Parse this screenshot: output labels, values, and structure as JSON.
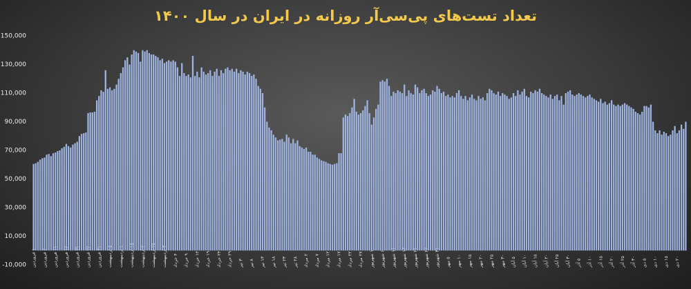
{
  "chart_data": {
    "type": "bar",
    "title": "تعداد تست‌های پی‌سی‌آر روزانه در ایران در سال ۱۴۰۰",
    "color": "#9fb4e0",
    "ylim": [
      -10000,
      150000
    ],
    "yticks": [
      {
        "value": -10000,
        "label": "-10,000"
      },
      {
        "value": 10000,
        "label": "10,000"
      },
      {
        "value": 30000,
        "label": "30,000"
      },
      {
        "value": 50000,
        "label": "50,000"
      },
      {
        "value": 70000,
        "label": "70,000"
      },
      {
        "value": 90000,
        "label": "90,000"
      },
      {
        "value": 110000,
        "label": "110,000"
      },
      {
        "value": 130000,
        "label": "130,000"
      },
      {
        "value": 150000,
        "label": "150,000"
      }
    ],
    "categories": [
      "۱ فروردین",
      null,
      null,
      null,
      null,
      "۶ فروردین",
      null,
      null,
      null,
      null,
      "۱۱ فروردین",
      null,
      null,
      null,
      null,
      "۱۶ فروردین",
      null,
      null,
      null,
      null,
      "۲۱ فروردین",
      null,
      null,
      null,
      null,
      "۲۶ فروردین",
      null,
      null,
      null,
      null,
      "۳۱ فروردین",
      null,
      null,
      null,
      null,
      "۵ اردیبهشت",
      null,
      null,
      null,
      null,
      "۱۰ اردیبهشت",
      null,
      null,
      null,
      null,
      "۱۵ اردیبهشت",
      null,
      null,
      null,
      null,
      "۲۰ اردیبهشت",
      null,
      null,
      null,
      null,
      "۲۵ اردیبهشت",
      null,
      null,
      null,
      null,
      "۳۰ اردیبهشت",
      null,
      null,
      null,
      null,
      "۴ خرداد",
      null,
      null,
      null,
      null,
      "۹ خرداد",
      null,
      null,
      null,
      null,
      "۱۴ خرداد",
      null,
      null,
      null,
      null,
      "۱۹ خرداد",
      null,
      null,
      null,
      null,
      "۲۴ خرداد",
      null,
      null,
      null,
      null,
      "۲۹ خرداد",
      null,
      null,
      null,
      null,
      "۳ تیر",
      null,
      null,
      null,
      null,
      "۸ تیر",
      null,
      null,
      null,
      null,
      "۱۳ تیر",
      null,
      null,
      null,
      null,
      "۱۸ تیر",
      null,
      null,
      null,
      null,
      "۲۳ تیر",
      null,
      null,
      null,
      null,
      "۲۸ تیر",
      null,
      null,
      null,
      null,
      "۲ مرداد",
      null,
      null,
      null,
      null,
      "۷ مرداد",
      null,
      null,
      null,
      null,
      "۱۲ مرداد",
      null,
      null,
      null,
      null,
      "۱۷ مرداد",
      null,
      null,
      null,
      null,
      "۲۲ مرداد",
      null,
      null,
      null,
      null,
      "۲۷ مرداد",
      null,
      null,
      null,
      null,
      "۱ شهریور",
      null,
      null,
      null,
      null,
      "۶ شهریور",
      null,
      null,
      null,
      null,
      "۱۱ شهریور",
      null,
      null,
      null,
      null,
      "۱۶ شهریور",
      null,
      null,
      null,
      null,
      "۲۱ شهریور",
      null,
      null,
      null,
      null,
      "۲۶ شهریور",
      null,
      null,
      null,
      null,
      "۳۱ شهریور",
      null,
      null,
      null,
      null,
      "۵ مهر",
      null,
      null,
      null,
      null,
      "۱۰ مهر",
      null,
      null,
      null,
      null,
      "۱۵ مهر",
      null,
      null,
      null,
      null,
      "۲۰ مهر",
      null,
      null,
      null,
      null,
      "۲۵ مهر",
      null,
      null,
      null,
      null,
      "۳۰ مهر",
      null,
      null,
      null,
      null,
      "۵ آبان",
      null,
      null,
      null,
      null,
      "۱۰ آبان",
      null,
      null,
      null,
      null,
      "۱۵ آبان",
      null,
      null,
      null,
      null,
      "۲۰ آبان",
      null,
      null,
      null,
      null,
      "۲۵ آبان",
      null,
      null,
      null,
      null,
      "۳۰ آبان",
      null,
      null,
      null,
      null,
      "۵ آذر",
      null,
      null,
      null,
      null,
      "۱۰ آذر",
      null,
      null,
      null,
      null,
      "۱۵ آذر",
      null,
      null,
      null,
      null,
      "۲۰ آذر",
      null,
      null,
      null,
      null,
      "۲۵ آذر",
      null,
      null,
      null,
      null,
      "۳۰ آذر",
      null,
      null,
      null,
      null,
      "۵ دی",
      null,
      null,
      null,
      null,
      "۱۰ دی",
      null,
      null,
      null,
      null,
      "۱۵ دی",
      null,
      null,
      null,
      null,
      "۲۰ دی",
      null,
      null,
      null,
      null
    ],
    "values": [
      60500,
      61000,
      62000,
      63500,
      64500,
      65000,
      67000,
      67500,
      66000,
      68000,
      68500,
      69500,
      70000,
      71500,
      72500,
      74500,
      73000,
      72000,
      74000,
      75000,
      76000,
      80000,
      81500,
      82000,
      82500,
      96000,
      96500,
      96500,
      97000,
      105000,
      108000,
      112000,
      111000,
      126000,
      113000,
      114000,
      112000,
      113000,
      116000,
      120000,
      124000,
      128000,
      133000,
      135000,
      130000,
      137000,
      140000,
      139000,
      138000,
      132000,
      140000,
      139000,
      140000,
      138000,
      137000,
      137000,
      136000,
      135000,
      133000,
      134000,
      131000,
      132000,
      133000,
      132000,
      133000,
      132000,
      128000,
      122000,
      131000,
      124000,
      122000,
      123000,
      121000,
      136000,
      122000,
      125000,
      121000,
      128000,
      125000,
      123000,
      124000,
      126000,
      122000,
      125000,
      127000,
      122000,
      126000,
      124000,
      127000,
      128000,
      126000,
      127000,
      125000,
      127000,
      124000,
      126000,
      125000,
      123000,
      125000,
      124000,
      122000,
      123000,
      120000,
      115000,
      113000,
      110000,
      100000,
      90000,
      86000,
      84000,
      81000,
      79000,
      77000,
      77500,
      78000,
      76000,
      81000,
      79000,
      75000,
      78000,
      75000,
      77000,
      73000,
      72000,
      71000,
      72000,
      69000,
      69000,
      67000,
      67000,
      65000,
      64000,
      63000,
      62500,
      62000,
      61000,
      60500,
      60000,
      60500,
      61000,
      68000,
      68000,
      93000,
      95000,
      94000,
      96000,
      100000,
      106000,
      97000,
      95000,
      96000,
      98000,
      101000,
      105000,
      96000,
      88000,
      93000,
      99000,
      102000,
      118000,
      119000,
      118000,
      120000,
      115000,
      108000,
      111000,
      110000,
      112000,
      111000,
      110000,
      116000,
      108000,
      112000,
      110000,
      109000,
      116000,
      114000,
      110000,
      112000,
      113000,
      110000,
      108000,
      109000,
      112000,
      111000,
      115000,
      113000,
      110000,
      111000,
      108000,
      109000,
      107000,
      108000,
      107000,
      110000,
      112000,
      108000,
      106000,
      108000,
      105000,
      107000,
      109000,
      106000,
      105000,
      108000,
      106000,
      107000,
      105000,
      110000,
      113000,
      112000,
      110000,
      109000,
      111000,
      108000,
      110000,
      109000,
      108000,
      106000,
      107000,
      110000,
      108000,
      112000,
      109000,
      111000,
      113000,
      108000,
      107000,
      111000,
      110000,
      112000,
      111000,
      113000,
      110000,
      109000,
      108000,
      107000,
      109000,
      106000,
      108000,
      109000,
      105000,
      108000,
      102000,
      110000,
      111000,
      112000,
      109000,
      108000,
      109000,
      110000,
      109000,
      108000,
      107000,
      108000,
      109000,
      107000,
      106000,
      105000,
      104000,
      106000,
      103000,
      104000,
      102000,
      103000,
      105000,
      102000,
      101000,
      102000,
      101000,
      102000,
      103000,
      102000,
      101000,
      100000,
      99000,
      97000,
      96000,
      95000,
      97000,
      101000,
      101000,
      100000,
      102000,
      90000,
      84000,
      82000,
      84000,
      81000,
      83000,
      82000,
      80000,
      81000,
      84000,
      87000,
      82000,
      84000,
      88000,
      85000,
      90000
    ]
  }
}
